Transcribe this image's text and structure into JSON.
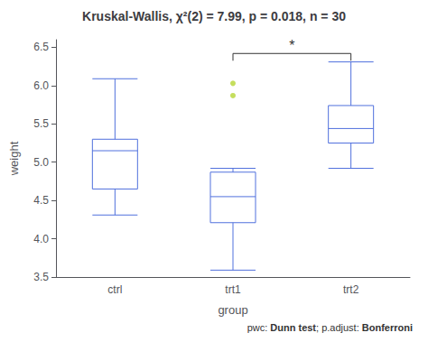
{
  "chart_data": {
    "type": "box",
    "title": "Kruskal-Wallis, χ²(2) = 7.99, p = 0.018, n = 30",
    "xlabel": "group",
    "ylabel": "weight",
    "categories": [
      "ctrl",
      "trt1",
      "trt2"
    ],
    "values": [
      [
        4.31,
        4.65,
        5.15,
        5.3,
        6.09
      ],
      [
        3.59,
        4.21,
        4.55,
        4.87,
        4.92
      ],
      [
        4.92,
        5.25,
        5.44,
        5.74,
        6.31
      ]
    ],
    "outliers": [
      [],
      [
        6.03,
        5.87
      ],
      []
    ],
    "ylim": [
      3.5,
      6.6
    ],
    "yticks": [
      3.5,
      {
        "value": 4.0,
        "label": "4.0"
      },
      4.5,
      {
        "value": 5.0,
        "label": "5.0"
      },
      5.5,
      {
        "value": 6.0,
        "label": "6.0"
      },
      6.5
    ],
    "grid": false,
    "annotations": [
      {
        "text": "*",
        "from": "trt1",
        "to": "trt2",
        "y": 6.42
      }
    ],
    "footnote": [
      "pwc: ",
      "Dunn test",
      "; p.adjust: ",
      "Bonferroni"
    ]
  }
}
